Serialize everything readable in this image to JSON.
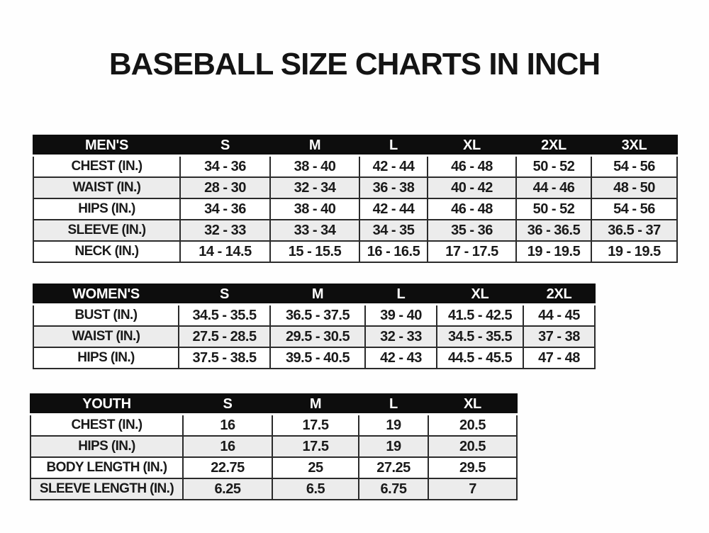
{
  "page": {
    "title": "BASEBALL SIZE CHARTS IN INCH"
  },
  "colors": {
    "background": "#fefefe",
    "header_bg": "#0d0d0d",
    "header_text": "#ffffff",
    "border": "#2b2b2b",
    "zebra_row": "#ececec",
    "text": "#1a1a1a"
  },
  "chart_data": [
    {
      "type": "table",
      "id": "mens",
      "title": "MEN'S",
      "columns": [
        "MEN'S",
        "S",
        "M",
        "L",
        "XL",
        "2XL",
        "3XL"
      ],
      "rows": [
        [
          "CHEST (IN.)",
          "34 - 36",
          "38 - 40",
          "42 - 44",
          "46 - 48",
          "50 - 52",
          "54 - 56"
        ],
        [
          "WAIST (IN.)",
          "28 - 30",
          "32 - 34",
          "36 - 38",
          "40 - 42",
          "44 - 46",
          "48 - 50"
        ],
        [
          "HIPS (IN.)",
          "34 - 36",
          "38 - 40",
          "42 - 44",
          "46 - 48",
          "50 - 52",
          "54 - 56"
        ],
        [
          "SLEEVE (IN.)",
          "32 - 33",
          "33 - 34",
          "34 - 35",
          "35 - 36",
          "36 - 36.5",
          "36.5 - 37"
        ],
        [
          "NECK (IN.)",
          "14 - 14.5",
          "15 - 15.5",
          "16 - 16.5",
          "17 - 17.5",
          "19 - 19.5",
          "19 - 19.5"
        ]
      ]
    },
    {
      "type": "table",
      "id": "womens",
      "title": "WOMEN'S",
      "columns": [
        "WOMEN'S",
        "S",
        "M",
        "L",
        "XL",
        "2XL"
      ],
      "rows": [
        [
          "BUST (IN.)",
          "34.5 - 35.5",
          "36.5 - 37.5",
          "39 - 40",
          "41.5 - 42.5",
          "44 - 45"
        ],
        [
          "WAIST (IN.)",
          "27.5 - 28.5",
          "29.5 - 30.5",
          "32 - 33",
          "34.5 - 35.5",
          "37 - 38"
        ],
        [
          "HIPS (IN.)",
          "37.5 - 38.5",
          "39.5 - 40.5",
          "42 - 43",
          "44.5 - 45.5",
          "47 - 48"
        ]
      ]
    },
    {
      "type": "table",
      "id": "youth",
      "title": "YOUTH",
      "columns": [
        "YOUTH",
        "S",
        "M",
        "L",
        "XL"
      ],
      "rows": [
        [
          "CHEST (IN.)",
          "16",
          "17.5",
          "19",
          "20.5"
        ],
        [
          "HIPS (IN.)",
          "16",
          "17.5",
          "19",
          "20.5"
        ],
        [
          "BODY LENGTH (IN.)",
          "22.75",
          "25",
          "27.25",
          "29.5"
        ],
        [
          "SLEEVE LENGTH (IN.)",
          "6.25",
          "6.5",
          "6.75",
          "7"
        ]
      ]
    }
  ]
}
